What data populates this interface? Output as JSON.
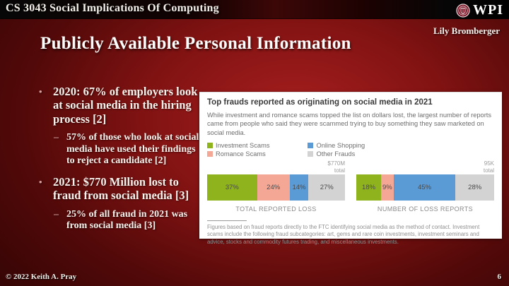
{
  "header": {
    "course_title": "CS 3043 Social Implications Of Computing",
    "logo_text": "WPI",
    "author": "Lily Bromberger"
  },
  "slide": {
    "title": "Publicly Available Personal Information",
    "bullets": [
      {
        "level": 1,
        "marker": "•",
        "text": "2020: 67% of employers look at social media in the hiring process [2]"
      },
      {
        "level": 2,
        "marker": "–",
        "text": "57% of those who look at social media have used their findings to reject a candidate [2]"
      },
      {
        "level": 1,
        "marker": "•",
        "text": "2021: $770 Million lost to fraud from social media [3]"
      },
      {
        "level": 2,
        "marker": "–",
        "text": "25% of all fraud in 2021 was from social media [3]"
      }
    ]
  },
  "chart_panel": {
    "title": "Top frauds reported as originating on social media in 2021",
    "subtitle": "While investment and romance scams topped the list on dollars lost, the largest number of reports came from people who said they were scammed trying to buy something they saw marketed on social media.",
    "footnote": "Figures based on fraud reports directly to the FTC identifying social media as the method of contact. Investment scams include the following fraud subcategories: art, gems and rare coin investments, investment seminars and advice, stocks and commodity futures trading, and miscellaneous investments."
  },
  "chart_data": {
    "type": "bar",
    "variant": "horizontal-stacked-percent",
    "title": "Top frauds reported as originating on social media in 2021",
    "legend_position": "top-left",
    "unit": "%",
    "series_names": [
      "Investment Scams",
      "Romance Scams",
      "Online Shopping",
      "Other Frauds"
    ],
    "legend": [
      {
        "label": "Investment Scams",
        "color": "#8fb31d"
      },
      {
        "label": "Romance Scams",
        "color": "#f5a795"
      },
      {
        "label": "Online Shopping",
        "color": "#5b9bd5"
      },
      {
        "label": "Other Frauds",
        "color": "#d3d3d3"
      }
    ],
    "bars": [
      {
        "label": "TOTAL REPORTED LOSS",
        "total_line1": "$770M",
        "total_line2": "total",
        "values": [
          37,
          24,
          14,
          27
        ],
        "value_labels": [
          "37%",
          "24%",
          "14%",
          "27%"
        ]
      },
      {
        "label": "NUMBER OF LOSS REPORTS",
        "total_line1": "95K",
        "total_line2": "total",
        "values": [
          18,
          9,
          45,
          28
        ],
        "value_labels": [
          "18%",
          "9%",
          "45%",
          "28%"
        ]
      }
    ]
  },
  "colors": {
    "background_red": "#8f1616",
    "investment_green": "#8fb31d",
    "romance_salmon": "#f5a795",
    "shopping_blue": "#5b9bd5",
    "other_gray": "#d3d3d3"
  },
  "footer": {
    "copyright": "© 2022 Keith A. Pray",
    "page_number": "6"
  }
}
